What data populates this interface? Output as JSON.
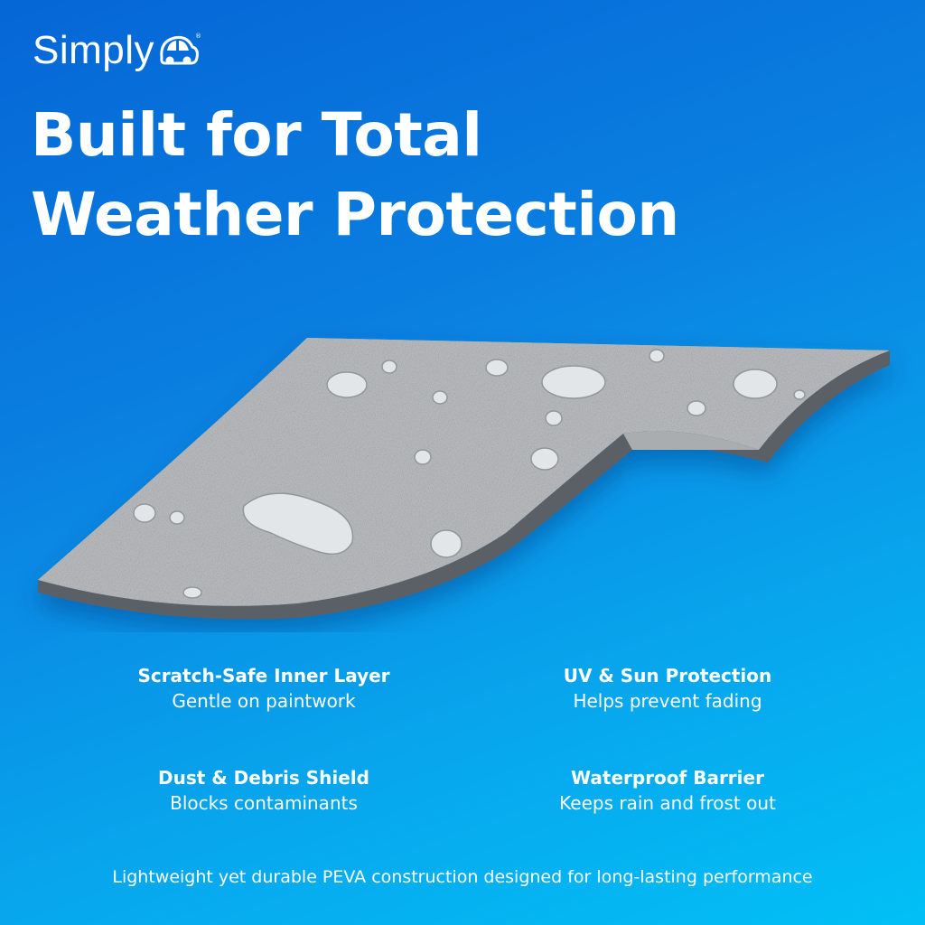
{
  "brand": {
    "name": "Simply",
    "logo_icon": "car-icon",
    "registered_mark": "®"
  },
  "headline": {
    "line1": "Built for Total",
    "line2": "Weather Protection"
  },
  "features": [
    {
      "title": "Scratch-Safe Inner Layer",
      "description": "Gentle on paintwork"
    },
    {
      "title": "UV & Sun Protection",
      "description": "Helps prevent fading"
    },
    {
      "title": "Dust & Debris Shield",
      "description": "Blocks contaminants"
    },
    {
      "title": "Waterproof Barrier",
      "description": "Keeps rain and frost out"
    }
  ],
  "footer": "Lightweight yet durable PEVA construction designed for long-lasting performance",
  "colors": {
    "background_start": "#0566d6",
    "background_end": "#02c0f6",
    "fabric": "#b9bcbf",
    "fabric_edge": "#5a6166"
  }
}
